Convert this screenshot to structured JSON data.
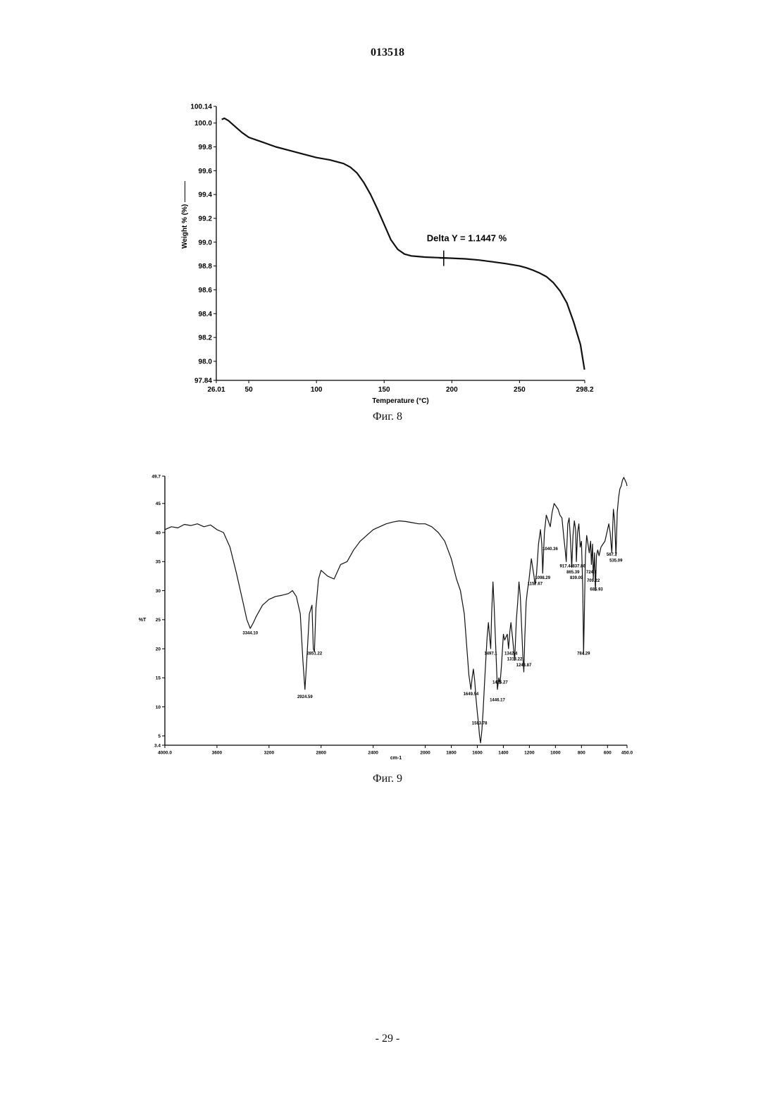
{
  "document": {
    "number": "013518",
    "page_number": "- 29 -"
  },
  "figures": {
    "fig8_caption": "Фиг. 8",
    "fig9_caption": "Фиг. 9"
  },
  "chart_data": [
    {
      "id": "fig8",
      "type": "line",
      "title": "",
      "xlabel": "Temperature (°C)",
      "ylabel": "Weight % (%) ———",
      "xlim": [
        26.01,
        298.2
      ],
      "ylim": [
        97.84,
        100.14
      ],
      "x_ticks": [
        26.01,
        50,
        100,
        150,
        200,
        250,
        298.2
      ],
      "x_tick_labels": [
        "26.01",
        "50",
        "100",
        "150",
        "200",
        "250",
        "298.2"
      ],
      "y_ticks": [
        97.84,
        98.0,
        98.2,
        98.4,
        98.6,
        98.8,
        99.0,
        99.2,
        99.4,
        99.6,
        99.8,
        100.0,
        100.14
      ],
      "y_tick_labels": [
        "97.84",
        "98.0",
        "98.2",
        "98.4",
        "98.6",
        "98.8",
        "99.0",
        "99.2",
        "99.4",
        "99.6",
        "99.8",
        "100.0",
        "100.14"
      ],
      "grid": false,
      "annotation": {
        "text": "Delta Y = 1.1447 %",
        "x": 194,
        "y": 98.865
      },
      "series": [
        {
          "x": [
            30,
            32,
            35,
            40,
            45,
            50,
            60,
            70,
            80,
            90,
            100,
            110,
            120,
            125,
            130,
            135,
            140,
            145,
            150,
            155,
            160,
            165,
            170,
            175,
            180,
            190,
            200,
            210,
            220,
            230,
            240,
            250,
            255,
            260,
            265,
            270,
            275,
            280,
            285,
            290,
            295,
            298
          ],
          "y": [
            100.03,
            100.04,
            100.02,
            99.97,
            99.92,
            99.88,
            99.84,
            99.8,
            99.77,
            99.74,
            99.71,
            99.69,
            99.66,
            99.63,
            99.58,
            99.5,
            99.4,
            99.28,
            99.15,
            99.02,
            98.94,
            98.9,
            98.885,
            98.88,
            98.875,
            98.87,
            98.865,
            98.86,
            98.85,
            98.835,
            98.82,
            98.8,
            98.785,
            98.765,
            98.74,
            98.71,
            98.66,
            98.59,
            98.49,
            98.33,
            98.14,
            97.93
          ]
        }
      ]
    },
    {
      "id": "fig9",
      "type": "line",
      "title": "",
      "xlabel": "cm-1",
      "ylabel": "%T",
      "xlim": [
        4000.0,
        450.0
      ],
      "ylim": [
        3.4,
        49.7
      ],
      "x_ticks": [
        4000,
        3600,
        3200,
        2800,
        2400,
        2000,
        1800,
        1600,
        1400,
        1200,
        1000,
        800,
        600,
        450
      ],
      "x_tick_labels": [
        "4000.0",
        "3600",
        "3200",
        "2800",
        "2400",
        "2000",
        "1800",
        "1600",
        "1400",
        "1200",
        "1000",
        "800",
        "600",
        "450.0"
      ],
      "y_ticks": [
        3.4,
        5,
        10,
        15,
        20,
        25,
        30,
        35,
        40,
        45,
        49.7
      ],
      "y_tick_labels": [
        "3.4",
        "5",
        "10",
        "15",
        "20",
        "25",
        "30",
        "35",
        "40",
        "45",
        "49.7"
      ],
      "grid": false,
      "peak_labels": [
        {
          "text": "3344.10",
          "x": 3344,
          "y": 22.5
        },
        {
          "text": "2924.59",
          "x": 2924,
          "y": 11.5
        },
        {
          "text": "2851.22",
          "x": 2851,
          "y": 19.0
        },
        {
          "text": "1649.54",
          "x": 1649,
          "y": 12.0
        },
        {
          "text": "1583.78",
          "x": 1583,
          "y": 7.0
        },
        {
          "text": "1497.1",
          "x": 1497,
          "y": 19.0
        },
        {
          "text": "1425.27",
          "x": 1425,
          "y": 14.0
        },
        {
          "text": "1446.17",
          "x": 1446,
          "y": 11.0
        },
        {
          "text": "1342.4",
          "x": 1342,
          "y": 19.0
        },
        {
          "text": "1313.22",
          "x": 1313,
          "y": 18.0
        },
        {
          "text": "1243.87",
          "x": 1243,
          "y": 17.0
        },
        {
          "text": "1157.67",
          "x": 1157,
          "y": 31.0
        },
        {
          "text": "1098.29",
          "x": 1098,
          "y": 32.0
        },
        {
          "text": "1040.36",
          "x": 1040,
          "y": 37.0
        },
        {
          "text": "917.44",
          "x": 917,
          "y": 34.0
        },
        {
          "text": "865.39",
          "x": 865,
          "y": 33.0
        },
        {
          "text": "839.09",
          "x": 839,
          "y": 32.0
        },
        {
          "text": "837.86",
          "x": 820,
          "y": 34.0
        },
        {
          "text": "784.29",
          "x": 784,
          "y": 19.0
        },
        {
          "text": "724.1",
          "x": 724,
          "y": 33.0
        },
        {
          "text": "709.22",
          "x": 709,
          "y": 31.5
        },
        {
          "text": "685.93",
          "x": 685,
          "y": 30.0
        },
        {
          "text": "567.7",
          "x": 567,
          "y": 36.0
        },
        {
          "text": "535.09",
          "x": 535,
          "y": 35.0
        }
      ],
      "series": [
        {
          "x": [
            4000,
            3950,
            3900,
            3850,
            3800,
            3750,
            3700,
            3650,
            3600,
            3550,
            3500,
            3450,
            3400,
            3370,
            3344,
            3320,
            3300,
            3250,
            3200,
            3150,
            3100,
            3050,
            3020,
            2990,
            2960,
            2940,
            2924,
            2910,
            2890,
            2870,
            2860,
            2851,
            2840,
            2820,
            2800,
            2750,
            2700,
            2650,
            2600,
            2550,
            2500,
            2450,
            2400,
            2350,
            2300,
            2250,
            2200,
            2150,
            2100,
            2050,
            2000,
            1950,
            1900,
            1850,
            1800,
            1760,
            1730,
            1700,
            1680,
            1665,
            1649,
            1640,
            1630,
            1620,
            1610,
            1600,
            1590,
            1583,
            1575,
            1565,
            1555,
            1545,
            1535,
            1525,
            1515,
            1505,
            1497,
            1490,
            1480,
            1470,
            1460,
            1446,
            1435,
            1425,
            1415,
            1400,
            1390,
            1380,
            1370,
            1360,
            1350,
            1342,
            1330,
            1313,
            1300,
            1290,
            1280,
            1270,
            1260,
            1250,
            1243,
            1235,
            1225,
            1215,
            1205,
            1195,
            1185,
            1175,
            1165,
            1157,
            1145,
            1130,
            1115,
            1105,
            1098,
            1085,
            1070,
            1055,
            1040,
            1025,
            1010,
            995,
            980,
            965,
            950,
            935,
            925,
            917,
            905,
            895,
            885,
            875,
            865,
            855,
            845,
            839,
            830,
            820,
            810,
            800,
            790,
            784,
            778,
            770,
            760,
            750,
            740,
            730,
            724,
            715,
            709,
            700,
            693,
            685,
            675,
            665,
            650,
            635,
            620,
            605,
            590,
            580,
            567,
            555,
            545,
            535,
            525,
            515,
            505,
            495,
            485,
            475,
            465,
            455,
            450
          ],
          "y": [
            40.5,
            41.0,
            40.8,
            41.4,
            41.2,
            41.5,
            41.0,
            41.3,
            40.5,
            40.0,
            37.5,
            33.0,
            28.0,
            25.0,
            23.5,
            24.5,
            25.5,
            27.5,
            28.5,
            29.0,
            29.2,
            29.5,
            30.0,
            29.0,
            26.0,
            18.0,
            13.0,
            18.0,
            26.0,
            27.5,
            20.0,
            19.5,
            27.0,
            32.0,
            33.5,
            32.5,
            32.0,
            34.5,
            35.0,
            37.0,
            38.5,
            39.5,
            40.5,
            41.0,
            41.5,
            41.8,
            42.0,
            41.9,
            41.7,
            41.5,
            41.5,
            41.0,
            40.0,
            38.5,
            35.5,
            32.0,
            30.0,
            26.0,
            20.0,
            15.5,
            13.0,
            15.0,
            16.5,
            14.5,
            11.5,
            9.0,
            7.0,
            5.0,
            3.8,
            6.0,
            9.5,
            14.0,
            18.0,
            22.0,
            24.5,
            22.0,
            20.0,
            26.0,
            31.5,
            27.0,
            21.0,
            13.0,
            15.0,
            14.0,
            17.0,
            22.5,
            21.5,
            22.0,
            22.5,
            20.0,
            23.0,
            24.5,
            22.0,
            18.0,
            25.0,
            28.0,
            31.5,
            29.0,
            24.0,
            18.5,
            16.0,
            22.0,
            28.0,
            30.0,
            31.5,
            33.5,
            35.5,
            34.0,
            32.5,
            31.0,
            33.0,
            38.0,
            40.5,
            38.0,
            33.0,
            40.0,
            43.0,
            42.0,
            41.0,
            43.5,
            45.0,
            44.5,
            44.0,
            43.0,
            42.5,
            39.0,
            37.0,
            35.0,
            41.5,
            42.5,
            39.0,
            34.0,
            39.5,
            42.0,
            40.5,
            35.0,
            40.0,
            41.5,
            37.5,
            38.5,
            30.0,
            19.0,
            26.0,
            36.0,
            39.5,
            38.0,
            36.5,
            38.5,
            34.5,
            38.0,
            32.0,
            36.5,
            30.0,
            36.0,
            37.0,
            36.0,
            37.5,
            38.0,
            38.5,
            40.0,
            41.5,
            40.0,
            36.5,
            44.0,
            42.0,
            36.0,
            43.5,
            46.0,
            47.5,
            48.0,
            49.0,
            49.5,
            49.0,
            48.5,
            48.0
          ]
        }
      ]
    }
  ]
}
